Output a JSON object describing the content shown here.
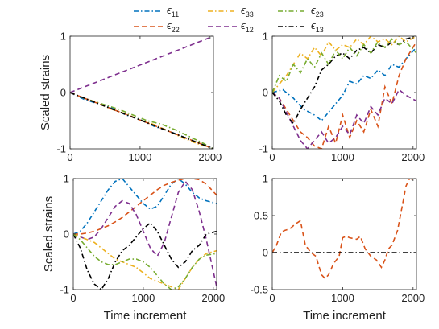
{
  "legend": {
    "entries": [
      {
        "symbol": "ϵ",
        "sub": "11",
        "color": "#0072BD",
        "dash": "dashdot"
      },
      {
        "symbol": "ϵ",
        "sub": "33",
        "color": "#EDB120",
        "dash": "dashdot"
      },
      {
        "symbol": "ϵ",
        "sub": "23",
        "color": "#77AC30",
        "dash": "dashdot"
      },
      {
        "symbol": "ϵ",
        "sub": "22",
        "color": "#D95319",
        "dash": "dashed"
      },
      {
        "symbol": "ϵ",
        "sub": "12",
        "color": "#7E2F8E",
        "dash": "dashed"
      },
      {
        "symbol": "ϵ",
        "sub": "13",
        "color": "#000000",
        "dash": "dashdot"
      }
    ],
    "placement": "top-center"
  },
  "chart_data": [
    {
      "type": "line",
      "title": "",
      "xlabel": "",
      "ylabel": "Scaled strains",
      "xlim": [
        0,
        2048
      ],
      "ylim": [
        -1,
        1
      ],
      "xticks": [
        0,
        1000,
        2000
      ],
      "yticks": [
        -1,
        0,
        1
      ],
      "xtick_labels": [
        "0",
        "1000",
        "2000"
      ],
      "ytick_labels": [
        "-1",
        "0",
        "1"
      ],
      "series": [
        {
          "color": "#7E2F8E",
          "dash": "dashed",
          "x": [
            0,
            2048
          ],
          "y": [
            0,
            1
          ]
        },
        {
          "color": "#77AC30",
          "dash": "dashdot",
          "x": [
            0,
            150,
            300,
            500,
            700,
            900,
            1100,
            1300,
            1500,
            1700,
            1900,
            2048
          ],
          "y": [
            0,
            -0.08,
            -0.14,
            -0.22,
            -0.3,
            -0.4,
            -0.5,
            -0.56,
            -0.66,
            -0.78,
            -0.9,
            -1
          ]
        },
        {
          "color": "#0072BD",
          "dash": "dashdot",
          "x": [
            0,
            200,
            400,
            600,
            800,
            1000,
            1200,
            1400,
            1600,
            1800,
            2048
          ],
          "y": [
            0,
            -0.12,
            -0.2,
            -0.28,
            -0.4,
            -0.48,
            -0.6,
            -0.68,
            -0.78,
            -0.88,
            -1
          ]
        },
        {
          "color": "#EDB120",
          "dash": "dashdot",
          "x": [
            0,
            200,
            400,
            600,
            800,
            1000,
            1200,
            1400,
            1600,
            1800,
            2048
          ],
          "y": [
            0,
            -0.1,
            -0.19,
            -0.3,
            -0.38,
            -0.49,
            -0.57,
            -0.68,
            -0.8,
            -0.9,
            -1
          ]
        },
        {
          "color": "#D95319",
          "dash": "dashed",
          "x": [
            0,
            2048
          ],
          "y": [
            0,
            -1
          ]
        },
        {
          "color": "#000000",
          "dash": "dashdot",
          "x": [
            0,
            2048
          ],
          "y": [
            0,
            -1
          ]
        }
      ]
    },
    {
      "type": "line",
      "title": "",
      "xlabel": "",
      "ylabel": "",
      "xlim": [
        0,
        2048
      ],
      "ylim": [
        -1,
        1
      ],
      "xticks": [
        0,
        1000,
        2000
      ],
      "yticks": [
        -1,
        0,
        1
      ],
      "xtick_labels": [
        "0",
        "1000",
        "2000"
      ],
      "ytick_labels": [
        "-1",
        "0",
        "1"
      ],
      "series": [
        {
          "color": "#0072BD",
          "dash": "dashdot",
          "x": [
            0,
            150,
            300,
            450,
            600,
            700,
            800,
            900,
            1000,
            1100,
            1200,
            1300,
            1400,
            1500,
            1600,
            1700,
            1800,
            1900,
            2048
          ],
          "y": [
            0,
            0.05,
            -0.1,
            -0.3,
            -0.4,
            -0.5,
            -0.35,
            -0.2,
            -0.05,
            0.2,
            0.15,
            0.3,
            0.25,
            0.4,
            0.3,
            0.5,
            0.45,
            0.6,
            0.8
          ]
        },
        {
          "color": "#D95319",
          "dash": "dashed",
          "x": [
            0,
            100,
            200,
            300,
            400,
            500,
            600,
            700,
            800,
            900,
            1000,
            1100,
            1200,
            1300,
            1400,
            1500,
            1600,
            1700,
            1800,
            1900,
            2048
          ],
          "y": [
            0,
            -0.1,
            -0.3,
            -0.5,
            -0.7,
            -0.8,
            -0.95,
            -1,
            -0.6,
            -0.9,
            -0.4,
            -0.8,
            -0.5,
            -0.7,
            -0.3,
            -0.6,
            0.1,
            -0.2,
            0.3,
            0.6,
            0.9
          ]
        },
        {
          "color": "#7E2F8E",
          "dash": "dashed",
          "x": [
            0,
            100,
            200,
            300,
            400,
            500,
            600,
            700,
            800,
            900,
            1000,
            1100,
            1200,
            1300,
            1400,
            1500,
            1600,
            1700,
            1800,
            1900,
            2048
          ],
          "y": [
            0,
            -0.1,
            -0.35,
            -0.6,
            -0.85,
            -1,
            -0.85,
            -0.7,
            -0.9,
            -0.8,
            -0.6,
            -0.75,
            -0.4,
            -0.55,
            -0.25,
            -0.4,
            -0.1,
            -0.2,
            0.05,
            -0.05,
            -0.15
          ]
        },
        {
          "color": "#000000",
          "dash": "dashdot",
          "x": [
            0,
            100,
            200,
            300,
            400,
            500,
            600,
            700,
            800,
            900,
            1000,
            1100,
            1200,
            1300,
            1400,
            1500,
            1600,
            1700,
            1800,
            1900,
            2048
          ],
          "y": [
            0,
            -0.15,
            -0.4,
            -0.55,
            -0.3,
            -0.1,
            0.1,
            0.4,
            0.5,
            0.65,
            0.7,
            0.6,
            0.75,
            0.8,
            0.7,
            0.85,
            0.8,
            0.9,
            0.85,
            0.95,
            1
          ]
        },
        {
          "color": "#EDB120",
          "dash": "dashdot",
          "x": [
            0,
            100,
            200,
            300,
            400,
            500,
            600,
            700,
            800,
            900,
            1000,
            1100,
            1200,
            1300,
            1400,
            1500,
            1600,
            1700,
            1800,
            1900,
            2048
          ],
          "y": [
            0,
            0.15,
            0.3,
            0.5,
            0.7,
            0.6,
            0.8,
            0.65,
            0.9,
            0.75,
            0.85,
            0.8,
            0.95,
            0.85,
            1,
            0.9,
            0.95,
            0.85,
            1,
            0.9,
            1
          ]
        },
        {
          "color": "#77AC30",
          "dash": "dashdot",
          "x": [
            0,
            100,
            200,
            300,
            400,
            500,
            600,
            700,
            800,
            900,
            1000,
            1100,
            1200,
            1300,
            1400,
            1500,
            1600,
            1700,
            1800,
            1900,
            2048
          ],
          "y": [
            0,
            0.3,
            0.2,
            0.5,
            0.35,
            0.6,
            0.45,
            0.7,
            0.5,
            0.75,
            0.6,
            0.8,
            0.65,
            0.85,
            0.7,
            0.9,
            0.8,
            0.95,
            0.85,
            0.9,
            0.7
          ]
        }
      ]
    },
    {
      "type": "line",
      "title": "",
      "xlabel": "Time increment",
      "ylabel": "Scaled strains",
      "xlim": [
        0,
        2048
      ],
      "ylim": [
        -1,
        1
      ],
      "xticks": [
        0,
        1000,
        2000
      ],
      "yticks": [
        -1,
        0,
        1
      ],
      "xtick_labels": [
        "0",
        "1000",
        "2000"
      ],
      "ytick_labels": [
        "-1",
        "0",
        "1"
      ],
      "series": [
        {
          "color": "#0072BD",
          "dash": "dashdot",
          "x": [
            0,
            100,
            200,
            300,
            400,
            500,
            600,
            700,
            800,
            900,
            1000,
            1100,
            1200,
            1300,
            1400,
            1500,
            1600,
            1700,
            1800,
            1900,
            2048
          ],
          "y": [
            0,
            0.05,
            0.2,
            0.4,
            0.6,
            0.8,
            0.95,
            1,
            0.85,
            0.7,
            0.55,
            0.45,
            0.5,
            0.7,
            0.9,
            1,
            0.9,
            0.75,
            0.65,
            0.6,
            0.55
          ]
        },
        {
          "color": "#D95319",
          "dash": "dashed",
          "x": [
            0,
            100,
            200,
            300,
            400,
            500,
            600,
            700,
            800,
            900,
            1000,
            1100,
            1200,
            1300,
            1400,
            1500,
            1600,
            1700,
            1800,
            1900,
            2048
          ],
          "y": [
            0,
            0,
            0.02,
            0.05,
            0.1,
            0.15,
            0.22,
            0.3,
            0.4,
            0.5,
            0.6,
            0.7,
            0.8,
            0.88,
            0.93,
            0.97,
            1,
            1,
            0.98,
            0.9,
            0.7
          ]
        },
        {
          "color": "#7E2F8E",
          "dash": "dashed",
          "x": [
            0,
            100,
            200,
            300,
            400,
            500,
            600,
            700,
            800,
            900,
            1000,
            1100,
            1200,
            1300,
            1400,
            1500,
            1600,
            1700,
            1800,
            1900,
            2048
          ],
          "y": [
            0,
            -0.05,
            -0.1,
            -0.05,
            0.1,
            0.3,
            0.5,
            0.6,
            0.55,
            0.35,
            0.05,
            -0.25,
            -0.4,
            -0.15,
            0.3,
            0.75,
            0.95,
            0.8,
            0.4,
            -0.1,
            -0.95
          ]
        },
        {
          "color": "#000000",
          "dash": "dashdot",
          "x": [
            0,
            100,
            200,
            300,
            400,
            500,
            600,
            700,
            800,
            900,
            1000,
            1100,
            1200,
            1300,
            1400,
            1500,
            1600,
            1700,
            1800,
            1900,
            2048
          ],
          "y": [
            0,
            -0.25,
            -0.65,
            -0.9,
            -1,
            -0.8,
            -0.5,
            -0.3,
            -0.2,
            -0.05,
            0.1,
            0.2,
            0.05,
            -0.2,
            -0.45,
            -0.6,
            -0.5,
            -0.3,
            -0.2,
            0,
            0.05
          ]
        },
        {
          "color": "#EDB120",
          "dash": "dashdot",
          "x": [
            0,
            100,
            200,
            300,
            400,
            500,
            600,
            700,
            800,
            900,
            1000,
            1100,
            1200,
            1300,
            1400,
            1500,
            1600,
            1700,
            1800,
            1900,
            2048
          ],
          "y": [
            0,
            -0.05,
            -0.1,
            -0.15,
            -0.25,
            -0.35,
            -0.45,
            -0.5,
            -0.55,
            -0.6,
            -0.7,
            -0.8,
            -0.85,
            -0.9,
            -0.95,
            -1,
            -0.8,
            -0.6,
            -0.45,
            -0.35,
            -0.3
          ]
        },
        {
          "color": "#77AC30",
          "dash": "dashdot",
          "x": [
            0,
            100,
            200,
            300,
            400,
            500,
            600,
            700,
            800,
            900,
            1000,
            1100,
            1200,
            1300,
            1400,
            1500,
            1600,
            1700,
            1800,
            1900,
            2048
          ],
          "y": [
            0,
            -0.1,
            -0.25,
            -0.4,
            -0.5,
            -0.55,
            -0.55,
            -0.5,
            -0.45,
            -0.45,
            -0.5,
            -0.6,
            -0.75,
            -0.9,
            -1,
            -0.95,
            -0.8,
            -0.6,
            -0.45,
            -0.38,
            -0.35
          ]
        }
      ]
    },
    {
      "type": "line",
      "title": "",
      "xlabel": "Time increment",
      "ylabel": "",
      "xlim": [
        0,
        2048
      ],
      "ylim": [
        -0.5,
        1
      ],
      "xticks": [
        0,
        1000,
        2000
      ],
      "yticks": [
        -0.5,
        0,
        0.5,
        1
      ],
      "xtick_labels": [
        "0",
        "1000",
        "2000"
      ],
      "ytick_labels": [
        "-0.5",
        "0",
        "0.5",
        "1"
      ],
      "series": [
        {
          "color": "#D95319",
          "dash": "dashed",
          "x": [
            0,
            60,
            130,
            180,
            250,
            320,
            400,
            470,
            550,
            620,
            700,
            750,
            800,
            870,
            950,
            1000,
            1050,
            1100,
            1200,
            1250,
            1320,
            1400,
            1480,
            1550,
            1600,
            1650,
            1700,
            1780,
            1850,
            1900,
            1950,
            2048
          ],
          "y": [
            0,
            0.1,
            0.28,
            0.3,
            0.32,
            0.38,
            0.43,
            0.1,
            0.0,
            -0.05,
            -0.3,
            -0.35,
            -0.3,
            -0.15,
            -0.05,
            0.2,
            0.22,
            0.2,
            0.18,
            0.22,
            0.05,
            -0.05,
            -0.1,
            -0.2,
            -0.1,
            0.05,
            0.1,
            0.3,
            0.65,
            0.9,
            1,
            0.98
          ]
        },
        {
          "color": "#000000",
          "dash": "dashdot",
          "x": [
            0,
            2048
          ],
          "y": [
            0,
            0
          ]
        }
      ]
    }
  ]
}
